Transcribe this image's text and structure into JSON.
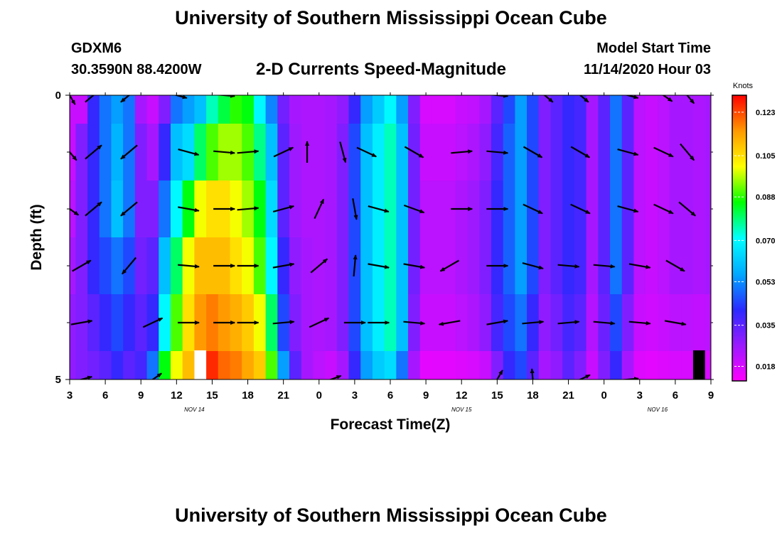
{
  "header": {
    "title": "University of Southern Mississippi Ocean Cube",
    "station_id": "GDXM6",
    "coordinates": "30.3590N 88.4200W",
    "subtitle": "2-D Currents Speed-Magnitude",
    "model_start_label": "Model Start Time",
    "model_start_value": "11/14/2020 Hour 03"
  },
  "footer": {
    "title": "University of Southern Mississippi Ocean Cube"
  },
  "chart_data": {
    "type": "heatmap",
    "title": "2-D Currents Speed-Magnitude",
    "xlabel": "Forecast Time(Z)",
    "ylabel": "Depth (ft)",
    "x_hours": [
      3,
      4,
      5,
      6,
      7,
      8,
      9,
      10,
      11,
      12,
      13,
      14,
      15,
      16,
      17,
      18,
      19,
      20,
      21,
      22,
      23,
      24,
      25,
      26,
      27,
      28,
      29,
      30,
      31,
      32,
      33,
      34,
      35,
      36,
      37,
      38,
      39,
      40,
      41,
      42,
      43,
      44,
      45,
      46,
      47,
      48,
      49,
      50,
      51,
      52,
      53,
      54,
      55,
      56,
      57
    ],
    "xlim": [
      3,
      57
    ],
    "x_ticks": [
      {
        "hour": 3,
        "label": "3"
      },
      {
        "hour": 6,
        "label": "6"
      },
      {
        "hour": 9,
        "label": "9"
      },
      {
        "hour": 12,
        "label": "12"
      },
      {
        "hour": 15,
        "label": "15"
      },
      {
        "hour": 18,
        "label": "18"
      },
      {
        "hour": 21,
        "label": "21"
      },
      {
        "hour": 24,
        "label": "0"
      },
      {
        "hour": 27,
        "label": "3"
      },
      {
        "hour": 30,
        "label": "6"
      },
      {
        "hour": 33,
        "label": "9"
      },
      {
        "hour": 36,
        "label": "12"
      },
      {
        "hour": 39,
        "label": "15"
      },
      {
        "hour": 42,
        "label": "18"
      },
      {
        "hour": 45,
        "label": "21"
      },
      {
        "hour": 48,
        "label": "0"
      },
      {
        "hour": 51,
        "label": "3"
      },
      {
        "hour": 54,
        "label": "6"
      },
      {
        "hour": 57,
        "label": "9"
      }
    ],
    "date_labels": [
      {
        "hour": 13.5,
        "label": "NOV 14"
      },
      {
        "hour": 36,
        "label": "NOV 15"
      },
      {
        "hour": 52.5,
        "label": "NOV 16"
      }
    ],
    "ylim": [
      0,
      5
    ],
    "y_ticks": [
      {
        "depth": 0,
        "label": "0"
      },
      {
        "depth": 5,
        "label": "5"
      }
    ],
    "y_minor_ticks": [
      1,
      2,
      3,
      4
    ],
    "depth_levels": [
      0,
      1,
      2,
      3,
      4,
      5
    ],
    "speed_knots": [
      [
        0.02,
        0.02,
        0.04,
        0.05,
        0.055,
        0.05,
        0.025,
        0.02,
        0.03,
        0.05,
        0.055,
        0.06,
        0.075,
        0.082,
        0.088,
        0.085,
        0.07,
        0.052,
        0.032,
        0.025,
        0.024,
        0.024,
        0.025,
        0.028,
        0.04,
        0.055,
        0.062,
        0.07,
        0.055,
        0.03,
        0.018,
        0.018,
        0.018,
        0.02,
        0.021,
        0.025,
        0.035,
        0.045,
        0.055,
        0.045,
        0.03,
        0.035,
        0.04,
        0.038,
        0.025,
        0.035,
        0.05,
        0.035,
        0.022,
        0.02,
        0.022,
        0.025,
        0.025,
        0.024,
        0.025
      ],
      [
        0.02,
        0.03,
        0.04,
        0.05,
        0.058,
        0.05,
        0.03,
        0.025,
        0.04,
        0.06,
        0.065,
        0.08,
        0.09,
        0.095,
        0.095,
        0.09,
        0.078,
        0.06,
        0.035,
        0.026,
        0.024,
        0.024,
        0.025,
        0.03,
        0.045,
        0.06,
        0.068,
        0.075,
        0.06,
        0.032,
        0.02,
        0.02,
        0.02,
        0.022,
        0.024,
        0.028,
        0.038,
        0.048,
        0.055,
        0.045,
        0.03,
        0.035,
        0.04,
        0.038,
        0.025,
        0.035,
        0.05,
        0.035,
        0.022,
        0.02,
        0.022,
        0.025,
        0.025,
        0.024,
        0.025
      ],
      [
        0.022,
        0.03,
        0.04,
        0.05,
        0.06,
        0.05,
        0.03,
        0.03,
        0.05,
        0.07,
        0.085,
        0.1,
        0.105,
        0.105,
        0.1,
        0.095,
        0.085,
        0.065,
        0.035,
        0.026,
        0.024,
        0.024,
        0.025,
        0.03,
        0.045,
        0.06,
        0.068,
        0.075,
        0.06,
        0.032,
        0.022,
        0.022,
        0.022,
        0.024,
        0.026,
        0.03,
        0.04,
        0.048,
        0.055,
        0.045,
        0.03,
        0.035,
        0.04,
        0.038,
        0.025,
        0.035,
        0.05,
        0.035,
        0.022,
        0.02,
        0.022,
        0.025,
        0.025,
        0.024,
        0.025
      ],
      [
        0.025,
        0.03,
        0.04,
        0.045,
        0.05,
        0.045,
        0.032,
        0.035,
        0.06,
        0.08,
        0.1,
        0.11,
        0.11,
        0.11,
        0.105,
        0.1,
        0.09,
        0.07,
        0.04,
        0.028,
        0.025,
        0.024,
        0.025,
        0.03,
        0.045,
        0.06,
        0.068,
        0.075,
        0.06,
        0.032,
        0.022,
        0.022,
        0.022,
        0.024,
        0.026,
        0.03,
        0.04,
        0.048,
        0.055,
        0.045,
        0.03,
        0.035,
        0.04,
        0.038,
        0.025,
        0.035,
        0.05,
        0.035,
        0.022,
        0.02,
        0.022,
        0.025,
        0.025,
        0.024,
        0.025
      ],
      [
        0.028,
        0.03,
        0.035,
        0.04,
        0.045,
        0.04,
        0.035,
        0.04,
        0.07,
        0.09,
        0.105,
        0.115,
        0.118,
        0.115,
        0.112,
        0.108,
        0.1,
        0.08,
        0.045,
        0.03,
        0.025,
        0.024,
        0.025,
        0.03,
        0.045,
        0.06,
        0.068,
        0.075,
        0.06,
        0.03,
        0.02,
        0.02,
        0.02,
        0.022,
        0.024,
        0.028,
        0.038,
        0.045,
        0.05,
        0.04,
        0.028,
        0.032,
        0.038,
        0.035,
        0.023,
        0.033,
        0.045,
        0.03,
        0.02,
        0.019,
        0.02,
        0.022,
        0.022,
        0.021,
        0.022
      ],
      [
        0.028,
        0.03,
        0.032,
        0.035,
        0.04,
        0.035,
        0.038,
        0.05,
        0.085,
        0.1,
        0.11,
        0.125,
        0.126,
        0.12,
        0.118,
        0.113,
        0.108,
        0.09,
        0.055,
        0.035,
        0.025,
        0.022,
        0.02,
        0.025,
        0.04,
        0.055,
        0.062,
        0.065,
        0.05,
        0.025,
        0.016,
        0.016,
        0.016,
        0.017,
        0.018,
        0.02,
        0.03,
        0.04,
        0.045,
        0.035,
        0.025,
        0.028,
        0.035,
        0.03,
        0.02,
        0.03,
        0.04,
        0.025,
        0.017,
        0.016,
        0.017,
        0.018,
        0.018,
        0.018,
        0.018
      ]
    ],
    "gaps": [
      {
        "hour": 14,
        "depth": 5,
        "color": "#ffffff"
      },
      {
        "hour": 56,
        "depth": 5,
        "color": "#000000"
      }
    ],
    "vectors": [
      {
        "hour": 3,
        "depth": 0,
        "angle": 60
      },
      {
        "hour": 5,
        "depth": 0,
        "angle": -40
      },
      {
        "hour": 8,
        "depth": 0,
        "angle": 140
      },
      {
        "hour": 12,
        "depth": 0,
        "angle": 15
      },
      {
        "hour": 16,
        "depth": 0,
        "angle": 5
      },
      {
        "hour": 39,
        "depth": 0,
        "angle": 5
      },
      {
        "hour": 43,
        "depth": 0,
        "angle": 40
      },
      {
        "hour": 46,
        "depth": 0,
        "angle": 40
      },
      {
        "hour": 50,
        "depth": 0,
        "angle": 15
      },
      {
        "hour": 53,
        "depth": 0,
        "angle": 35
      },
      {
        "hour": 55,
        "depth": 0,
        "angle": 50
      },
      {
        "hour": 3,
        "depth": 1,
        "angle": 50
      },
      {
        "hour": 5,
        "depth": 1,
        "angle": -40
      },
      {
        "hour": 8,
        "depth": 1,
        "angle": 140
      },
      {
        "hour": 13,
        "depth": 1,
        "angle": 15
      },
      {
        "hour": 16,
        "depth": 1,
        "angle": 5
      },
      {
        "hour": 18,
        "depth": 1,
        "angle": -5
      },
      {
        "hour": 21,
        "depth": 1,
        "angle": -25
      },
      {
        "hour": 23,
        "depth": 1,
        "angle": -90
      },
      {
        "hour": 26,
        "depth": 1,
        "angle": 75
      },
      {
        "hour": 28,
        "depth": 1,
        "angle": 25
      },
      {
        "hour": 32,
        "depth": 1,
        "angle": 30
      },
      {
        "hour": 36,
        "depth": 1,
        "angle": -5
      },
      {
        "hour": 39,
        "depth": 1,
        "angle": 5
      },
      {
        "hour": 42,
        "depth": 1,
        "angle": 30
      },
      {
        "hour": 46,
        "depth": 1,
        "angle": 30
      },
      {
        "hour": 50,
        "depth": 1,
        "angle": 15
      },
      {
        "hour": 53,
        "depth": 1,
        "angle": 25
      },
      {
        "hour": 55,
        "depth": 1,
        "angle": 50
      },
      {
        "hour": 3,
        "depth": 2,
        "angle": 35
      },
      {
        "hour": 5,
        "depth": 2,
        "angle": -40
      },
      {
        "hour": 8,
        "depth": 2,
        "angle": 140
      },
      {
        "hour": 13,
        "depth": 2,
        "angle": 10
      },
      {
        "hour": 16,
        "depth": 2,
        "angle": 0
      },
      {
        "hour": 18,
        "depth": 2,
        "angle": -5
      },
      {
        "hour": 21,
        "depth": 2,
        "angle": -15
      },
      {
        "hour": 24,
        "depth": 2,
        "angle": -65
      },
      {
        "hour": 27,
        "depth": 2,
        "angle": 80
      },
      {
        "hour": 29,
        "depth": 2,
        "angle": 15
      },
      {
        "hour": 32,
        "depth": 2,
        "angle": 20
      },
      {
        "hour": 36,
        "depth": 2,
        "angle": 0
      },
      {
        "hour": 39,
        "depth": 2,
        "angle": 0
      },
      {
        "hour": 42,
        "depth": 2,
        "angle": 25
      },
      {
        "hour": 46,
        "depth": 2,
        "angle": 25
      },
      {
        "hour": 50,
        "depth": 2,
        "angle": 15
      },
      {
        "hour": 53,
        "depth": 2,
        "angle": 25
      },
      {
        "hour": 55,
        "depth": 2,
        "angle": 40
      },
      {
        "hour": 4,
        "depth": 3,
        "angle": -30
      },
      {
        "hour": 8,
        "depth": 3,
        "angle": 130
      },
      {
        "hour": 13,
        "depth": 3,
        "angle": 5
      },
      {
        "hour": 16,
        "depth": 3,
        "angle": 0
      },
      {
        "hour": 18,
        "depth": 3,
        "angle": 0
      },
      {
        "hour": 21,
        "depth": 3,
        "angle": -10
      },
      {
        "hour": 24,
        "depth": 3,
        "angle": -40
      },
      {
        "hour": 27,
        "depth": 3,
        "angle": -85
      },
      {
        "hour": 29,
        "depth": 3,
        "angle": 10
      },
      {
        "hour": 32,
        "depth": 3,
        "angle": 10
      },
      {
        "hour": 35,
        "depth": 3,
        "angle": 150
      },
      {
        "hour": 39,
        "depth": 3,
        "angle": 0
      },
      {
        "hour": 42,
        "depth": 3,
        "angle": 15
      },
      {
        "hour": 45,
        "depth": 3,
        "angle": 5
      },
      {
        "hour": 48,
        "depth": 3,
        "angle": 5
      },
      {
        "hour": 51,
        "depth": 3,
        "angle": 10
      },
      {
        "hour": 54,
        "depth": 3,
        "angle": 30
      },
      {
        "hour": 4,
        "depth": 4,
        "angle": -10
      },
      {
        "hour": 10,
        "depth": 4,
        "angle": -25
      },
      {
        "hour": 13,
        "depth": 4,
        "angle": 0
      },
      {
        "hour": 16,
        "depth": 4,
        "angle": 0
      },
      {
        "hour": 18,
        "depth": 4,
        "angle": 0
      },
      {
        "hour": 21,
        "depth": 4,
        "angle": -5
      },
      {
        "hour": 24,
        "depth": 4,
        "angle": -25
      },
      {
        "hour": 27,
        "depth": 4,
        "angle": 0
      },
      {
        "hour": 29,
        "depth": 4,
        "angle": 0
      },
      {
        "hour": 32,
        "depth": 4,
        "angle": 5
      },
      {
        "hour": 35,
        "depth": 4,
        "angle": 170
      },
      {
        "hour": 39,
        "depth": 4,
        "angle": -10
      },
      {
        "hour": 42,
        "depth": 4,
        "angle": -5
      },
      {
        "hour": 45,
        "depth": 4,
        "angle": -5
      },
      {
        "hour": 48,
        "depth": 4,
        "angle": 5
      },
      {
        "hour": 51,
        "depth": 4,
        "angle": 5
      },
      {
        "hour": 54,
        "depth": 4,
        "angle": 10
      },
      {
        "hour": 4,
        "depth": 5,
        "angle": -15
      },
      {
        "hour": 10,
        "depth": 5,
        "angle": -35
      },
      {
        "hour": 25,
        "depth": 5,
        "angle": -20
      },
      {
        "hour": 39,
        "depth": 5,
        "angle": -60
      },
      {
        "hour": 42,
        "depth": 5,
        "angle": -95
      },
      {
        "hour": 46,
        "depth": 5,
        "angle": -25
      },
      {
        "hour": 50,
        "depth": 5,
        "angle": -5
      }
    ],
    "colorbar": {
      "label": "Knots",
      "min": 0.012,
      "max": 0.13,
      "tick_values": [
        0.018,
        0.035,
        0.053,
        0.07,
        0.088,
        0.105,
        0.123
      ],
      "tick_labels": [
        "0.018",
        "0.035",
        "0.053",
        "0.070",
        "0.088",
        "0.105",
        "0.123"
      ],
      "colors": [
        "#ff00ff",
        "#9a1aff",
        "#2a2aff",
        "#00aaff",
        "#00ffff",
        "#00ff00",
        "#ffff00",
        "#ff9900",
        "#ff0000"
      ]
    }
  }
}
